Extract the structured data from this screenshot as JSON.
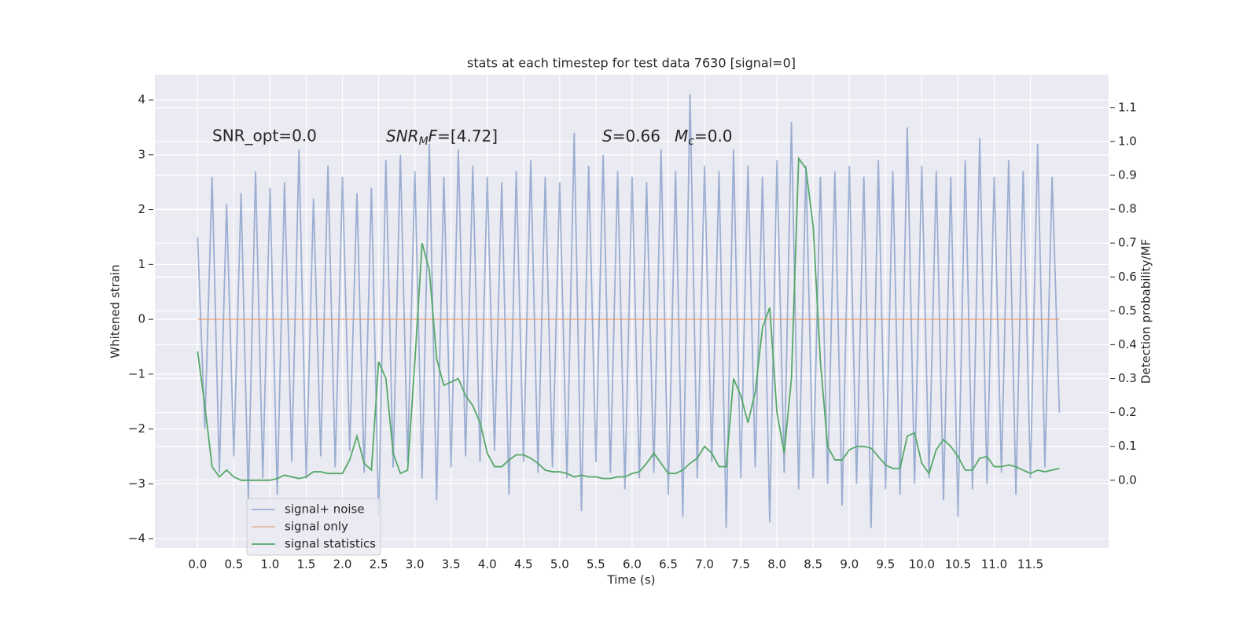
{
  "chart_data": {
    "type": "line",
    "title": "stats at each timestep for test data 7630 [signal=0]",
    "xlabel": "Time (s)",
    "ylabel": "Whitened strain",
    "y2label": "Detection probability/MF",
    "annotations": [
      [
        "SNR_opt=0.0"
      ],
      [
        "SNR",
        "M",
        "F",
        "=[4.72]"
      ],
      [
        "S",
        "=0.66"
      ],
      [
        "M",
        "c",
        "=0.0"
      ]
    ],
    "x": [
      0,
      0.1,
      0.2,
      0.3,
      0.4,
      0.5,
      0.6,
      0.7,
      0.8,
      0.9,
      1,
      1.1,
      1.2,
      1.3,
      1.4,
      1.5,
      1.6,
      1.7,
      1.8,
      1.9,
      2,
      2.1,
      2.2,
      2.3,
      2.4,
      2.5,
      2.6,
      2.7,
      2.8,
      2.9,
      3,
      3.1,
      3.2,
      3.3,
      3.4,
      3.5,
      3.6,
      3.7,
      3.8,
      3.9,
      4,
      4.1,
      4.2,
      4.3,
      4.4,
      4.5,
      4.6,
      4.7,
      4.8,
      4.9,
      5,
      5.1,
      5.2,
      5.3,
      5.4,
      5.5,
      5.6,
      5.7,
      5.8,
      5.9,
      6,
      6.1,
      6.2,
      6.3,
      6.4,
      6.5,
      6.6,
      6.7,
      6.8,
      6.9,
      7,
      7.1,
      7.2,
      7.3,
      7.4,
      7.5,
      7.6,
      7.7,
      7.8,
      7.9,
      8,
      8.1,
      8.2,
      8.3,
      8.4,
      8.5,
      8.6,
      8.7,
      8.8,
      8.9,
      9,
      9.1,
      9.2,
      9.3,
      9.4,
      9.5,
      9.6,
      9.7,
      9.8,
      9.9,
      10,
      10.1,
      10.2,
      10.3,
      10.4,
      10.5,
      10.6,
      10.7,
      10.8,
      10.9,
      11,
      11.1,
      11.2,
      11.3,
      11.4,
      11.5,
      11.6,
      11.7,
      11.8,
      11.9
    ],
    "series": [
      {
        "name": "signal+ noise",
        "color": "#4c72b0",
        "opacity": 0.5,
        "values": [
          1.5,
          -2.0,
          2.6,
          -2.8,
          2.1,
          -2.5,
          2.3,
          -3.3,
          2.7,
          -2.9,
          2.4,
          -3.2,
          2.5,
          -2.6,
          3.1,
          -2.9,
          2.2,
          -2.5,
          2.8,
          -2.7,
          2.6,
          -2.4,
          2.3,
          -2.8,
          2.4,
          -3.6,
          2.9,
          -2.7,
          3.0,
          -2.6,
          2.7,
          -2.9,
          3.2,
          -3.3,
          2.6,
          -2.7,
          3.1,
          -2.5,
          2.8,
          -2.6,
          2.6,
          -2.4,
          2.5,
          -3.2,
          2.7,
          -2.6,
          2.9,
          -2.8,
          2.6,
          -2.7,
          2.5,
          -2.9,
          3.4,
          -3.5,
          2.8,
          -2.6,
          3.0,
          -2.8,
          2.7,
          -3.1,
          2.6,
          -2.9,
          2.5,
          -2.8,
          3.1,
          -3.2,
          2.7,
          -3.6,
          4.1,
          -2.9,
          2.8,
          -2.6,
          2.7,
          -3.8,
          3.1,
          -2.9,
          2.8,
          -2.7,
          2.6,
          -3.7,
          2.9,
          -2.8,
          3.6,
          -3.1,
          2.8,
          -2.9,
          2.6,
          -3.0,
          2.7,
          -3.4,
          2.8,
          -3.0,
          2.6,
          -3.8,
          2.9,
          -3.1,
          2.7,
          -3.2,
          3.5,
          -3.0,
          2.8,
          -2.9,
          2.7,
          -3.3,
          2.6,
          -3.6,
          2.9,
          -3.1,
          3.3,
          -3.0,
          2.6,
          -2.8,
          2.9,
          -3.2,
          2.7,
          -2.9,
          3.2,
          -2.7,
          2.6,
          -1.7
        ]
      },
      {
        "name": "signal only",
        "color": "#dd8452",
        "opacity": 0.5,
        "values": [
          0,
          0,
          0,
          0,
          0,
          0,
          0,
          0,
          0,
          0,
          0,
          0,
          0,
          0,
          0,
          0,
          0,
          0,
          0,
          0,
          0,
          0,
          0,
          0,
          0,
          0,
          0,
          0,
          0,
          0,
          0,
          0,
          0,
          0,
          0,
          0,
          0,
          0,
          0,
          0,
          0,
          0,
          0,
          0,
          0,
          0,
          0,
          0,
          0,
          0,
          0,
          0,
          0,
          0,
          0,
          0,
          0,
          0,
          0,
          0,
          0,
          0,
          0,
          0,
          0,
          0,
          0,
          0,
          0,
          0,
          0,
          0,
          0,
          0,
          0,
          0,
          0,
          0,
          0,
          0,
          0,
          0,
          0,
          0,
          0,
          0,
          0,
          0,
          0,
          0,
          0,
          0,
          0,
          0,
          0,
          0,
          0,
          0,
          0,
          0,
          0,
          0,
          0,
          0,
          0,
          0,
          0,
          0,
          0,
          0,
          0,
          0,
          0,
          0,
          0,
          0,
          0,
          0,
          0,
          0
        ]
      },
      {
        "name": "signal statistics",
        "color": "#55a868",
        "opacity": 1,
        "axis": "y2",
        "values": [
          0.38,
          0.22,
          0.04,
          0.01,
          0.03,
          0.01,
          0,
          0,
          0,
          0,
          0,
          0.005,
          0.015,
          0.01,
          0.005,
          0.01,
          0.025,
          0.025,
          0.02,
          0.02,
          0.02,
          0.06,
          0.13,
          0.05,
          0.03,
          0.35,
          0.3,
          0.08,
          0.02,
          0.03,
          0.35,
          0.7,
          0.62,
          0.36,
          0.28,
          0.29,
          0.3,
          0.25,
          0.22,
          0.17,
          0.08,
          0.04,
          0.04,
          0.06,
          0.075,
          0.075,
          0.065,
          0.05,
          0.03,
          0.025,
          0.025,
          0.02,
          0.01,
          0.015,
          0.01,
          0.01,
          0.005,
          0.005,
          0.01,
          0.01,
          0.02,
          0.025,
          0.05,
          0.08,
          0.05,
          0.02,
          0.02,
          0.03,
          0.05,
          0.065,
          0.1,
          0.08,
          0.04,
          0.04,
          0.3,
          0.25,
          0.17,
          0.26,
          0.45,
          0.51,
          0.2,
          0.08,
          0.3,
          0.95,
          0.92,
          0.75,
          0.35,
          0.1,
          0.06,
          0.06,
          0.09,
          0.1,
          0.1,
          0.095,
          0.07,
          0.045,
          0.035,
          0.035,
          0.13,
          0.14,
          0.05,
          0.02,
          0.09,
          0.12,
          0.1,
          0.07,
          0.03,
          0.03,
          0.065,
          0.07,
          0.04,
          0.04,
          0.045,
          0.04,
          0.03,
          0.02,
          0.03,
          0.025,
          0.03,
          0.035
        ]
      }
    ],
    "xlim": [
      -0.59,
      12.58
    ],
    "xticks": [
      {
        "value": 0,
        "label": "0.0"
      },
      0.5,
      {
        "value": 1,
        "label": "1.0"
      },
      1.5,
      {
        "value": 2,
        "label": "2.0"
      },
      2.5,
      {
        "value": 3,
        "label": "3.0"
      },
      3.5,
      {
        "value": 4,
        "label": "4.0"
      },
      4.5,
      {
        "value": 5,
        "label": "5.0"
      },
      5.5,
      {
        "value": 6,
        "label": "6.0"
      },
      6.5,
      {
        "value": 7,
        "label": "7.0"
      },
      7.5,
      {
        "value": 8,
        "label": "8.0"
      },
      8.5,
      {
        "value": 9,
        "label": "9.0"
      },
      9.5,
      {
        "value": 10,
        "label": "10.0"
      },
      10.5,
      {
        "value": 11,
        "label": "11.0"
      },
      11.5
    ],
    "ylim": [
      -4.17,
      4.46
    ],
    "yticks": [
      {
        "value": -4,
        "label": "−4"
      },
      {
        "value": -3,
        "label": "−3"
      },
      {
        "value": -2,
        "label": "−2"
      },
      {
        "value": -1,
        "label": "−1"
      },
      0,
      1,
      2,
      3,
      4
    ],
    "y2lim": [
      -0.2,
      1.197
    ],
    "y2ticks": [
      {
        "value": 0,
        "label": "0.0"
      },
      0.1,
      0.2,
      0.3,
      0.4,
      0.5,
      0.6,
      0.7,
      0.8,
      0.9,
      {
        "value": 1,
        "label": "1.0"
      },
      1.1
    ],
    "grid": true,
    "legend": "lower left",
    "background": "#eaeaf2"
  }
}
